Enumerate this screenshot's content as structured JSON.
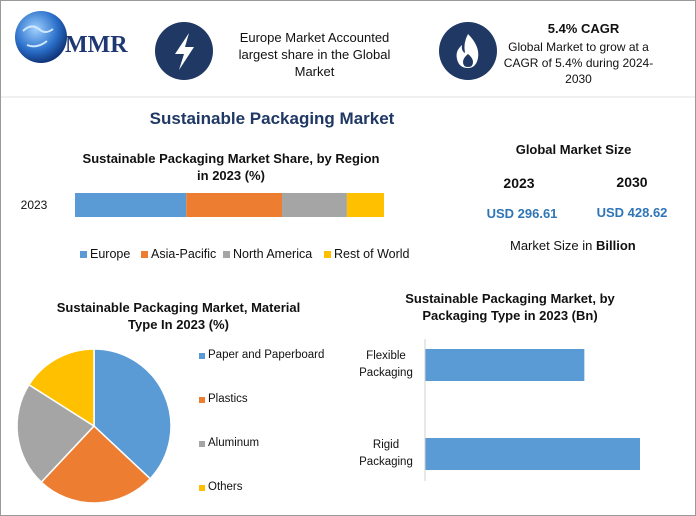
{
  "header": {
    "logo": "MMR",
    "highlight": "Europe Market Accounted largest share in the Global Market",
    "cagr_title": "5.4% CAGR",
    "cagr_text": "Global Market to grow at a CAGR of 5.4% during 2024-2030"
  },
  "title": "Sustainable Packaging Market",
  "market_size": {
    "title": "Global Market Size",
    "years": [
      "2023",
      "2030"
    ],
    "values": [
      "USD 296.61",
      "USD 428.62"
    ],
    "note": "Market Size in",
    "note_unit": "Billion"
  },
  "chart_data": [
    {
      "type": "stacked-bar",
      "title": "Sustainable Packaging Market Share, by Region  in 2023 (%)",
      "categories": [
        "2023"
      ],
      "xlim": [
        0,
        100
      ],
      "legend": "bottom",
      "series": [
        {
          "name": "Europe",
          "color": "#5b9bd5",
          "values": [
            36
          ]
        },
        {
          "name": "Asia-Pacific",
          "color": "#ed7d31",
          "values": [
            31
          ]
        },
        {
          "name": "North America",
          "color": "#a5a5a5",
          "values": [
            21
          ]
        },
        {
          "name": "Rest of World",
          "color": "#ffc000",
          "values": [
            12
          ]
        }
      ]
    },
    {
      "type": "pie",
      "title": "Sustainable Packaging Market, Material Type In 2023 (%)",
      "categories": [
        "Paper and Paperboard",
        "Plastics",
        "Aluminum",
        "Others"
      ],
      "values": [
        37,
        25,
        22,
        16
      ],
      "colors": [
        "#5b9bd5",
        "#ed7d31",
        "#a5a5a5",
        "#ffc000"
      ],
      "legend": "right"
    },
    {
      "type": "hbar",
      "title": "Sustainable Packaging Market, by Packaging Type in 2023 (Bn)",
      "categories": [
        "Flexible Packaging",
        "Rigid Packaging"
      ],
      "values": [
        126,
        170
      ],
      "color": "#5b9bd5",
      "xlim": [
        0,
        170
      ]
    }
  ]
}
